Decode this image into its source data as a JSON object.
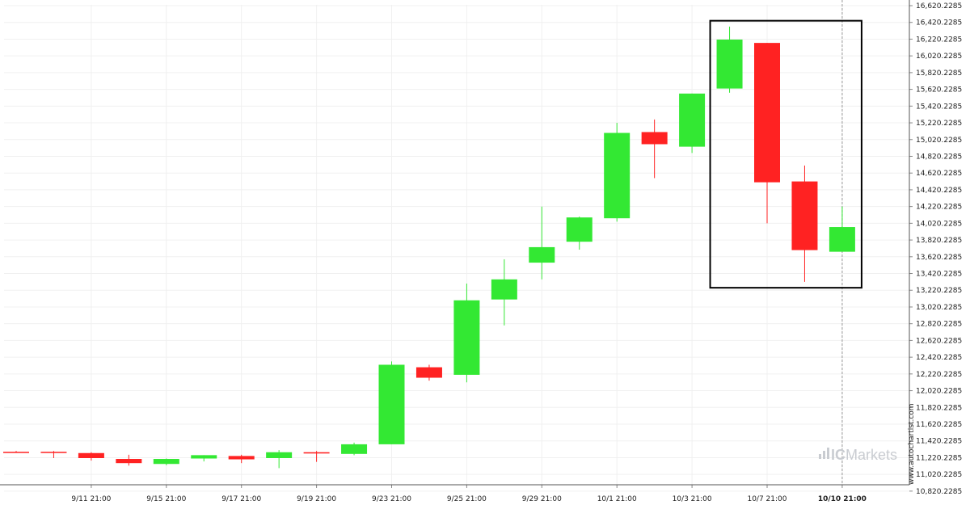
{
  "chart_data": {
    "type": "candlestick",
    "x_tick_labels": [
      "9/11 21:00",
      "9/15 21:00",
      "9/17 21:00",
      "9/19 21:00",
      "9/23 21:00",
      "9/25 21:00",
      "9/29 21:00",
      "10/1 21:00",
      "10/3 21:00",
      "10/7 21:00",
      "10/10 21:00"
    ],
    "y_tick_labels": [
      "16,620.2285",
      "16,420.2285",
      "16,220.2285",
      "16,020.2285",
      "15,820.2285",
      "15,620.2285",
      "15,420.2285",
      "15,220.2285",
      "15,020.2285",
      "14,820.2285",
      "14,620.2285",
      "14,420.2285",
      "14,220.2285",
      "14,020.2285",
      "13,820.2285",
      "13,620.2285",
      "13,420.2285",
      "13,220.2285",
      "13,020.2285",
      "12,820.2285",
      "12,620.2285",
      "12,420.2285",
      "12,220.2285",
      "12,020.2285",
      "11,820.2285",
      "11,620.2285",
      "11,420.2285",
      "11,220.2285",
      "11,020.2285",
      "10,820.2285"
    ],
    "ylim": [
      10820.2285,
      16620.2285
    ],
    "grid": true,
    "up_color": "#33e833",
    "down_color": "#ff2222",
    "candles": [
      {
        "o": 11290,
        "h": 11300,
        "l": 11280,
        "c": 11285
      },
      {
        "o": 11290,
        "h": 11300,
        "l": 11215,
        "c": 11285
      },
      {
        "o": 11275,
        "h": 11285,
        "l": 11185,
        "c": 11215
      },
      {
        "o": 11205,
        "h": 11255,
        "l": 11125,
        "c": 11155
      },
      {
        "o": 11145,
        "h": 11210,
        "l": 11130,
        "c": 11205
      },
      {
        "o": 11210,
        "h": 11250,
        "l": 11175,
        "c": 11250
      },
      {
        "o": 11240,
        "h": 11255,
        "l": 11155,
        "c": 11200
      },
      {
        "o": 11215,
        "h": 11310,
        "l": 11095,
        "c": 11285
      },
      {
        "o": 11285,
        "h": 11300,
        "l": 11170,
        "c": 11270
      },
      {
        "o": 11265,
        "h": 11400,
        "l": 11250,
        "c": 11380
      },
      {
        "o": 11380,
        "h": 12370,
        "l": 11380,
        "c": 12330
      },
      {
        "o": 12300,
        "h": 12330,
        "l": 12140,
        "c": 12175
      },
      {
        "o": 12210,
        "h": 13300,
        "l": 12120,
        "c": 13100
      },
      {
        "o": 13110,
        "h": 13590,
        "l": 12800,
        "c": 13350
      },
      {
        "o": 13550,
        "h": 14220,
        "l": 13350,
        "c": 13735
      },
      {
        "o": 13800,
        "h": 14100,
        "l": 13705,
        "c": 14090
      },
      {
        "o": 14080,
        "h": 15220,
        "l": 14040,
        "c": 15100
      },
      {
        "o": 15110,
        "h": 15260,
        "l": 14560,
        "c": 14965
      },
      {
        "o": 14935,
        "h": 15570,
        "l": 14860,
        "c": 15570
      },
      {
        "o": 15630,
        "h": 16370,
        "l": 15580,
        "c": 16215
      },
      {
        "o": 16175,
        "h": 16175,
        "l": 14020,
        "c": 14510
      },
      {
        "o": 14520,
        "h": 14710,
        "l": 13320,
        "c": 13700
      },
      {
        "o": 13680,
        "h": 14220,
        "l": 13680,
        "c": 13975
      }
    ],
    "highlight_candles": [
      19,
      22
    ],
    "highlight_price_range": [
      13250,
      16440
    ]
  },
  "watermark": "www.autochartist.com",
  "brand": {
    "prefix": "IC",
    "name": "Markets"
  }
}
